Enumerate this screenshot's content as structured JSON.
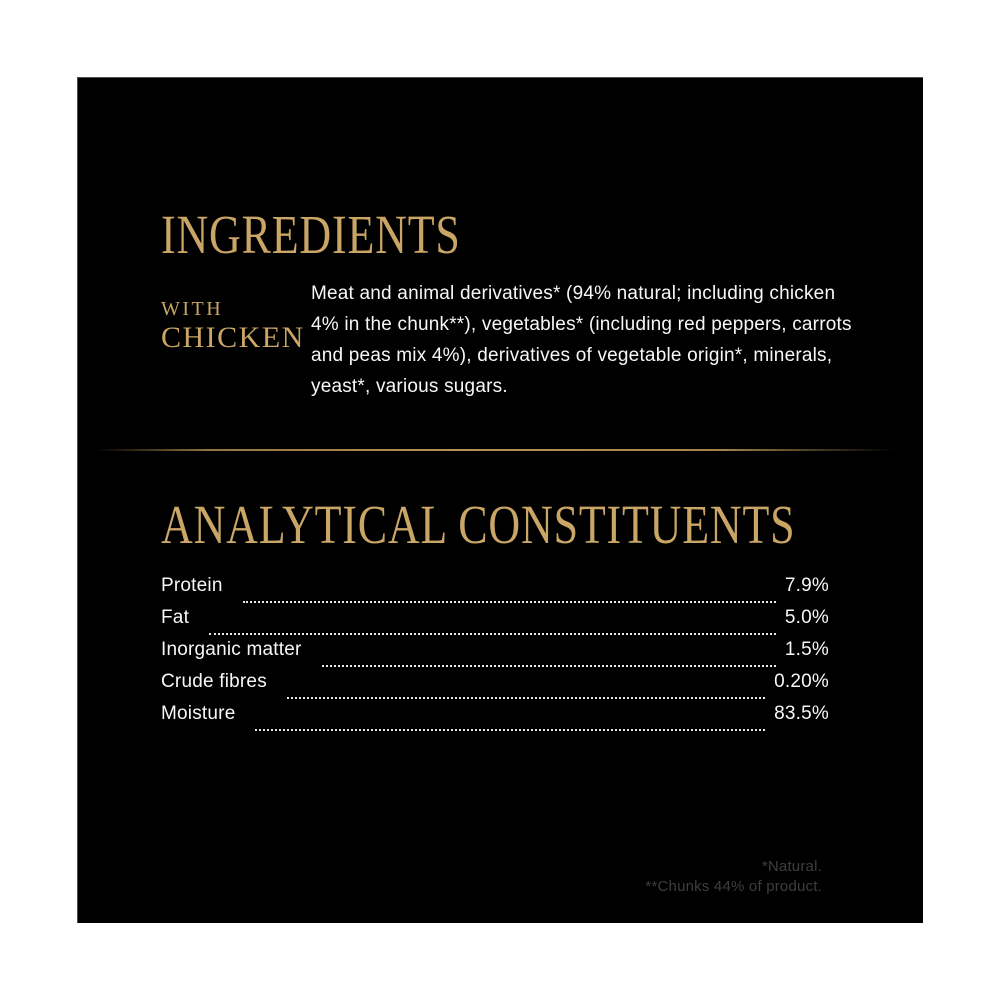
{
  "colors": {
    "page-bg": "#ffffff",
    "panel-bg": "#000000",
    "accent-gold": "#C9A566",
    "divider-gold": "#B29458",
    "body-text": "#F7F7F7",
    "footnote-text": "#3E3E3E"
  },
  "ingredients": {
    "heading": "INGREDIENTS",
    "variant_label_top": "WITH",
    "variant_label_bottom": "CHICKEN",
    "body": "Meat and animal derivatives* (94% natural; including chicken 4% in the chunk**), vegetables* (including red peppers, carrots and peas mix 4%), derivatives of vegetable origin*, minerals, yeast*, various sugars."
  },
  "analytical": {
    "heading": "ANALYTICAL CONSTITUENTS",
    "rows": [
      {
        "label": "Protein",
        "value": "7.9%"
      },
      {
        "label": "Fat",
        "value": "5.0%"
      },
      {
        "label": "Inorganic matter",
        "value": "1.5%"
      },
      {
        "label": "Crude fibres",
        "value": "0.20%"
      },
      {
        "label": "Moisture",
        "value": "83.5%"
      }
    ]
  },
  "footnotes": {
    "line1": "*Natural.",
    "line2": "**Chunks 44% of product."
  }
}
